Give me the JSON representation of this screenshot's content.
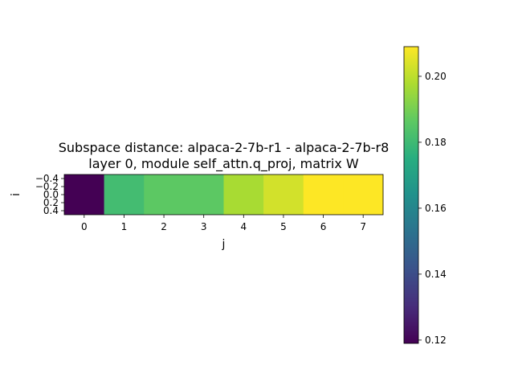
{
  "chart_data": {
    "type": "heatmap",
    "title": "Subspace distance: alpaca-2-7b-r1 - alpaca-2-7b-r8\nlayer 0, module self_attn.q_proj, matrix W",
    "xlabel": "j",
    "ylabel": "i",
    "x_ticks": [
      "0",
      "1",
      "2",
      "3",
      "4",
      "5",
      "6",
      "7"
    ],
    "y_ticks": [
      "−0.4",
      "−0.2",
      "0.0",
      "0.2",
      "0.4"
    ],
    "x": [
      0,
      1,
      2,
      3,
      4,
      5,
      6,
      7
    ],
    "y": [
      0
    ],
    "values": [
      [
        0.119,
        0.181,
        0.186,
        0.186,
        0.197,
        0.203,
        0.209,
        0.209
      ]
    ],
    "xlim": [
      -0.5,
      7.5
    ],
    "ylim": [
      0.5,
      -0.5
    ],
    "colormap": "viridis",
    "colorbar": {
      "range": [
        0.119,
        0.209
      ],
      "ticks": [
        "0.12",
        "0.14",
        "0.16",
        "0.18",
        "0.20"
      ],
      "tick_values": [
        0.12,
        0.14,
        0.16,
        0.18,
        0.2
      ]
    }
  }
}
